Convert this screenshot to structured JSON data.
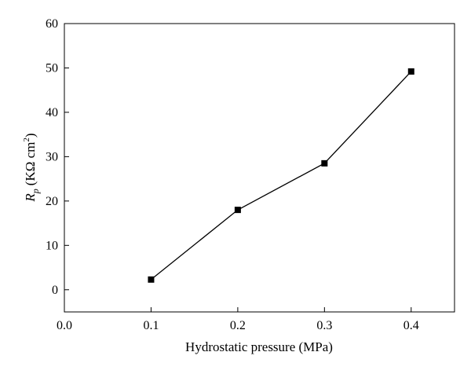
{
  "chart_data": {
    "type": "line",
    "title": "",
    "xlabel": "Hydrostatic pressure (MPa)",
    "ylabel": {
      "symbol": "R",
      "subscript": "p",
      "unit_open": "(K",
      "omega": "Ω",
      "unit_cm": " cm",
      "superscript": "2",
      "unit_close": ")"
    },
    "xlim": [
      0.0,
      0.45
    ],
    "ylim": [
      -5,
      60
    ],
    "xticks": [
      0.0,
      0.1,
      0.2,
      0.3,
      0.4
    ],
    "xtick_labels": [
      "0.0",
      "0.1",
      "0.2",
      "0.3",
      "0.4"
    ],
    "yticks": [
      0,
      10,
      20,
      30,
      40,
      50,
      60
    ],
    "ytick_labels": [
      "0",
      "10",
      "20",
      "30",
      "40",
      "50",
      "60"
    ],
    "grid": false,
    "marker": "square",
    "series": [
      {
        "x": [
          0.1,
          0.2,
          0.3,
          0.4
        ],
        "y": [
          2.3,
          18.0,
          28.5,
          49.2
        ]
      }
    ],
    "colors": {
      "line": "#000000",
      "marker": "#000000",
      "axis": "#000000"
    }
  }
}
